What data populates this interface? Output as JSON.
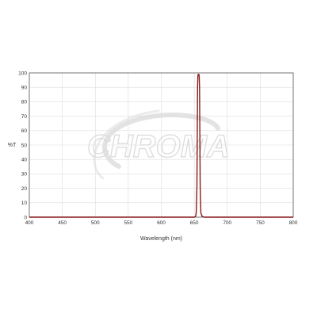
{
  "watermark": {
    "text": "CHROMA"
  },
  "chart_data": {
    "type": "line",
    "title": "",
    "xlabel": "Wavelength (nm)",
    "ylabel": "%T",
    "xlim": [
      400,
      800
    ],
    "ylim": [
      0,
      100
    ],
    "xticks": [
      400,
      450,
      500,
      550,
      600,
      650,
      700,
      750,
      800
    ],
    "yticks": [
      0,
      10,
      20,
      30,
      40,
      50,
      60,
      70,
      80,
      90,
      100
    ],
    "grid": true,
    "legend": "none",
    "series_color": "#8b1a1a",
    "series": [
      {
        "x": [
          400,
          500,
          600,
          645,
          650,
          652,
          653,
          654,
          654.5,
          655,
          655.5,
          656,
          656.5,
          657,
          657.5,
          658,
          658.5,
          659,
          660,
          662,
          665,
          700,
          800
        ],
        "y": [
          0,
          0,
          0,
          0,
          0,
          0.5,
          3,
          20,
          55,
          90,
          98,
          99,
          99,
          99,
          98,
          90,
          55,
          20,
          3,
          0.5,
          0,
          0,
          0
        ]
      }
    ]
  }
}
